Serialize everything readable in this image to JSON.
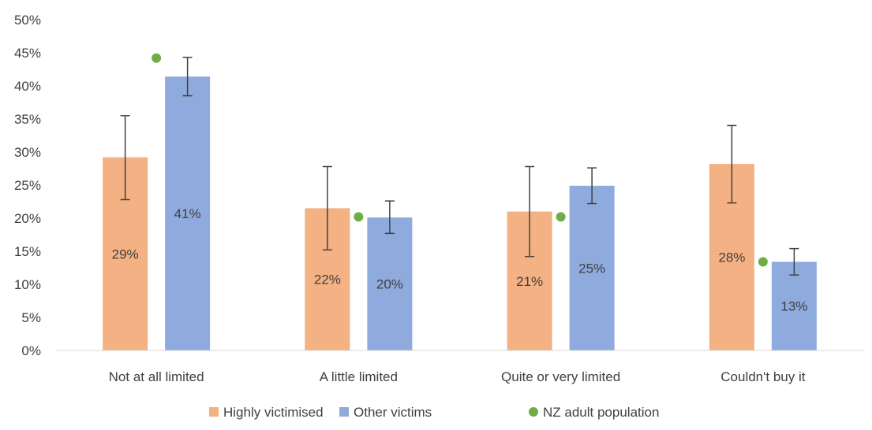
{
  "chart_data": {
    "type": "bar",
    "categories": [
      "Not at all limited",
      "A little limited",
      "Quite or very limited",
      "Couldn't buy it"
    ],
    "ylim": [
      0,
      50
    ],
    "yticks": [
      0,
      5,
      10,
      15,
      20,
      25,
      30,
      35,
      40,
      45,
      50
    ],
    "tick_suffix": "%",
    "grid": false,
    "legend_position": "bottom",
    "series": [
      {
        "name": "Highly victimised",
        "color": "#F4B183",
        "values": [
          29.2,
          21.5,
          21.0,
          28.2
        ],
        "labels": [
          "29%",
          "22%",
          "21%",
          "28%"
        ],
        "error_low": [
          22.8,
          15.2,
          14.2,
          22.3
        ],
        "error_high": [
          35.5,
          27.8,
          27.8,
          34.0
        ]
      },
      {
        "name": "Other victims",
        "color": "#8FAADC",
        "values": [
          41.4,
          20.1,
          24.9,
          13.4
        ],
        "labels": [
          "41%",
          "20%",
          "25%",
          "13%"
        ],
        "error_low": [
          38.5,
          17.7,
          22.2,
          11.4
        ],
        "error_high": [
          44.3,
          22.6,
          27.6,
          15.4
        ]
      }
    ],
    "markers": {
      "name": "NZ adult population",
      "color": "#70AD47",
      "values": [
        44.2,
        20.2,
        20.2,
        13.4
      ]
    }
  }
}
